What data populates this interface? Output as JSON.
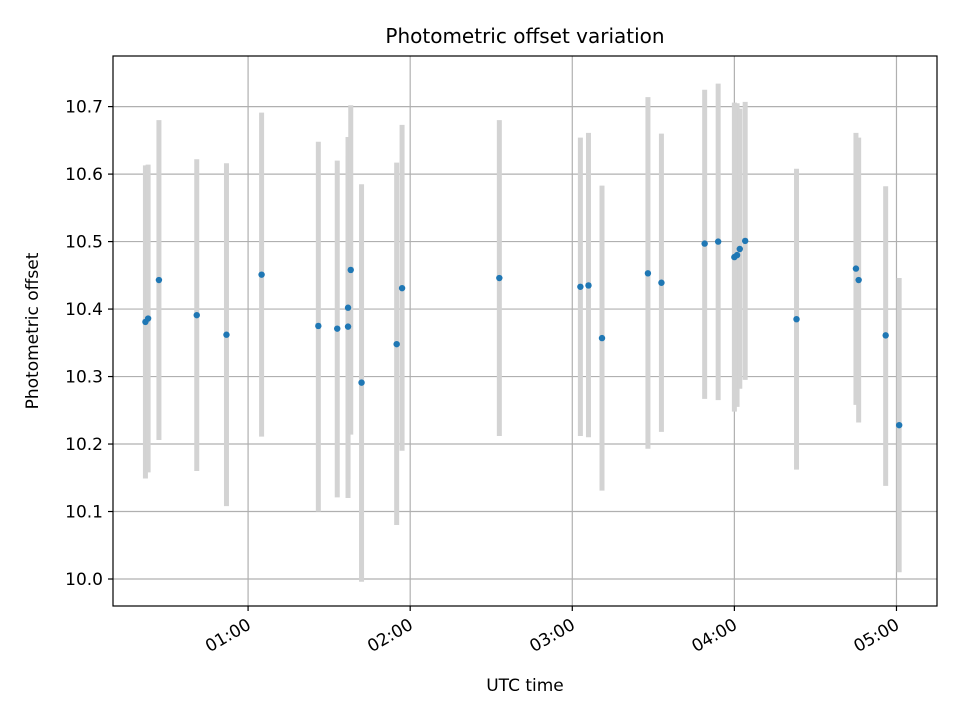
{
  "chart_data": {
    "type": "scatter",
    "title": "Photometric offset variation",
    "xlabel": "UTC time",
    "ylabel": "Photometric offset",
    "x_unit": "UTC time",
    "xlim": [
      "00:10",
      "05:15"
    ],
    "ylim": [
      9.96,
      10.775
    ],
    "x_ticks": [
      "01:00",
      "02:00",
      "03:00",
      "04:00",
      "05:00"
    ],
    "y_ticks": [
      "10.0",
      "10.1",
      "10.2",
      "10.3",
      "10.4",
      "10.5",
      "10.6",
      "10.7"
    ],
    "grid": true,
    "colors": {
      "points": "#1f77b4",
      "error_bars": "#d3d3d3",
      "grid": "#b0b0b0"
    },
    "series": [
      {
        "points": [
          {
            "x": "00:22",
            "y": 10.381,
            "y_low": 10.149,
            "y_high": 10.613
          },
          {
            "x": "00:23",
            "y": 10.386,
            "y_low": 10.158,
            "y_high": 10.614
          },
          {
            "x": "00:27",
            "y": 10.443,
            "y_low": 10.206,
            "y_high": 10.68
          },
          {
            "x": "00:41",
            "y": 10.391,
            "y_low": 10.16,
            "y_high": 10.622
          },
          {
            "x": "00:52",
            "y": 10.362,
            "y_low": 10.108,
            "y_high": 10.616
          },
          {
            "x": "01:05",
            "y": 10.451,
            "y_low": 10.211,
            "y_high": 10.691
          },
          {
            "x": "01:26",
            "y": 10.375,
            "y_low": 10.1,
            "y_high": 10.648
          },
          {
            "x": "01:33",
            "y": 10.371,
            "y_low": 10.121,
            "y_high": 10.62
          },
          {
            "x": "01:37",
            "y": 10.402,
            "y_low": 10.148,
            "y_high": 10.655
          },
          {
            "x": "01:37",
            "y": 10.374,
            "y_low": 10.12,
            "y_high": 10.628
          },
          {
            "x": "01:38",
            "y": 10.458,
            "y_low": 10.214,
            "y_high": 10.702
          },
          {
            "x": "01:42",
            "y": 10.291,
            "y_low": 9.996,
            "y_high": 10.585
          },
          {
            "x": "01:55",
            "y": 10.348,
            "y_low": 10.08,
            "y_high": 10.617
          },
          {
            "x": "01:57",
            "y": 10.431,
            "y_low": 10.19,
            "y_high": 10.673
          },
          {
            "x": "02:33",
            "y": 10.446,
            "y_low": 10.212,
            "y_high": 10.68
          },
          {
            "x": "03:03",
            "y": 10.433,
            "y_low": 10.212,
            "y_high": 10.654
          },
          {
            "x": "03:06",
            "y": 10.435,
            "y_low": 10.21,
            "y_high": 10.661
          },
          {
            "x": "03:11",
            "y": 10.357,
            "y_low": 10.131,
            "y_high": 10.583
          },
          {
            "x": "03:28",
            "y": 10.453,
            "y_low": 10.193,
            "y_high": 10.714
          },
          {
            "x": "03:33",
            "y": 10.439,
            "y_low": 10.218,
            "y_high": 10.66
          },
          {
            "x": "03:49",
            "y": 10.497,
            "y_low": 10.267,
            "y_high": 10.725
          },
          {
            "x": "03:54",
            "y": 10.5,
            "y_low": 10.265,
            "y_high": 10.734
          },
          {
            "x": "04:00",
            "y": 10.477,
            "y_low": 10.248,
            "y_high": 10.706
          },
          {
            "x": "04:01",
            "y": 10.48,
            "y_low": 10.255,
            "y_high": 10.705
          },
          {
            "x": "04:02",
            "y": 10.489,
            "y_low": 10.282,
            "y_high": 10.697
          },
          {
            "x": "04:04",
            "y": 10.501,
            "y_low": 10.295,
            "y_high": 10.707
          },
          {
            "x": "04:23",
            "y": 10.385,
            "y_low": 10.162,
            "y_high": 10.608
          },
          {
            "x": "04:45",
            "y": 10.46,
            "y_low": 10.258,
            "y_high": 10.661
          },
          {
            "x": "04:46",
            "y": 10.443,
            "y_low": 10.232,
            "y_high": 10.654
          },
          {
            "x": "04:56",
            "y": 10.361,
            "y_low": 10.138,
            "y_high": 10.582
          },
          {
            "x": "05:01",
            "y": 10.228,
            "y_low": 10.01,
            "y_high": 10.446
          }
        ]
      }
    ]
  }
}
